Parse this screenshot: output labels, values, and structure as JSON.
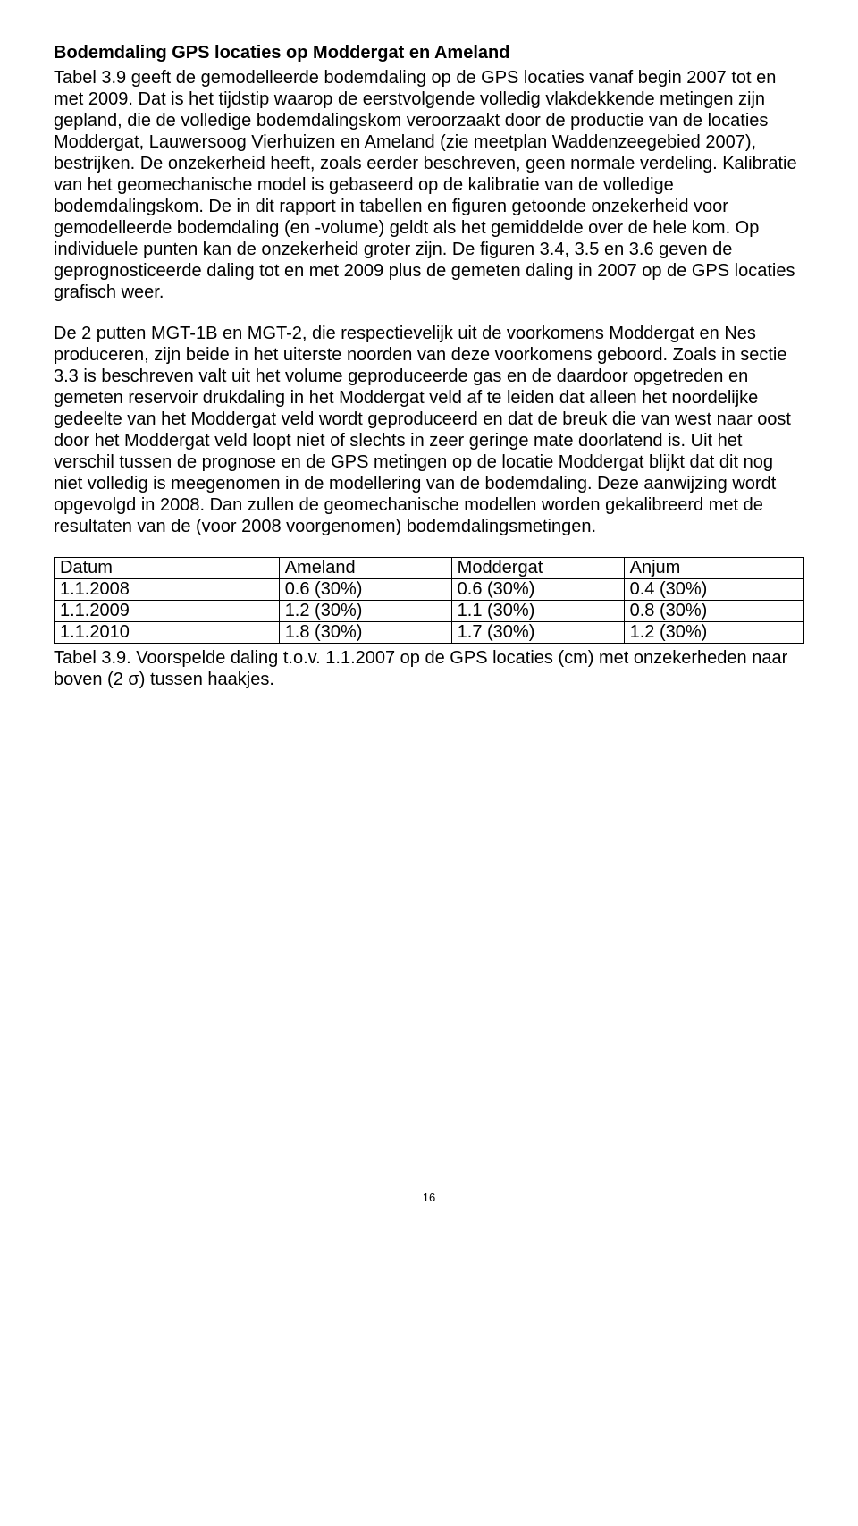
{
  "section_title": "Bodemdaling GPS locaties op Moddergat en Ameland",
  "paragraph1": "Tabel 3.9 geeft de gemodelleerde bodemdaling op de GPS locaties vanaf begin 2007 tot en met 2009. Dat is het tijdstip waarop de eerstvolgende volledig vlakdekkende metingen zijn gepland, die de volledige bodemdalingskom veroorzaakt door de productie van de locaties Moddergat, Lauwersoog Vierhuizen en Ameland (zie meetplan Waddenzeegebied 2007), bestrijken. De onzekerheid heeft, zoals eerder beschreven, geen normale verdeling. Kalibratie van het geomechanische model is gebaseerd op de kalibratie van de volledige bodemdalingskom. De in dit rapport in tabellen en figuren getoonde onzekerheid voor gemodelleerde bodemdaling (en -volume) geldt als het gemiddelde over de hele kom. Op individuele punten kan de onzekerheid groter zijn. De figuren 3.4, 3.5 en 3.6 geven de geprognosticeerde daling tot en met 2009 plus de gemeten daling in 2007 op de GPS locaties grafisch weer.",
  "paragraph2": "De 2 putten MGT-1B en MGT-2, die respectievelijk uit de voorkomens Moddergat en Nes produceren, zijn beide in het uiterste noorden van deze voorkomens geboord. Zoals in sectie 3.3 is beschreven valt uit het volume geproduceerde gas en de daardoor opgetreden en gemeten reservoir drukdaling in het Moddergat veld af te leiden dat alleen het noordelijke gedeelte van het Moddergat veld wordt geproduceerd en dat de breuk die van west naar oost door het Moddergat veld loopt niet of slechts in zeer geringe mate doorlatend is. Uit het verschil tussen de prognose en de GPS metingen op de locatie Moddergat blijkt dat dit nog niet volledig is meegenomen in de modellering van de bodemdaling. Deze aanwijzing wordt opgevolgd in 2008. Dan zullen de geomechanische modellen worden gekalibreerd met de resultaten van de (voor 2008 voorgenomen) bodemdalingsmetingen.",
  "table": {
    "headers": [
      "Datum",
      "Ameland",
      "Moddergat",
      "Anjum"
    ],
    "rows": [
      [
        "1.1.2008",
        "0.6 (30%)",
        "0.6 (30%)",
        "0.4 (30%)"
      ],
      [
        "1.1.2009",
        "1.2 (30%)",
        "1.1 (30%)",
        "0.8 (30%)"
      ],
      [
        "1.1.2010",
        "1.8 (30%)",
        "1.7 (30%)",
        "1.2 (30%)"
      ]
    ]
  },
  "table_caption": "Tabel 3.9. Voorspelde daling t.o.v. 1.1.2007 op de GPS locaties (cm) met onzekerheden naar boven (2 σ) tussen haakjes.",
  "page_number": "16"
}
